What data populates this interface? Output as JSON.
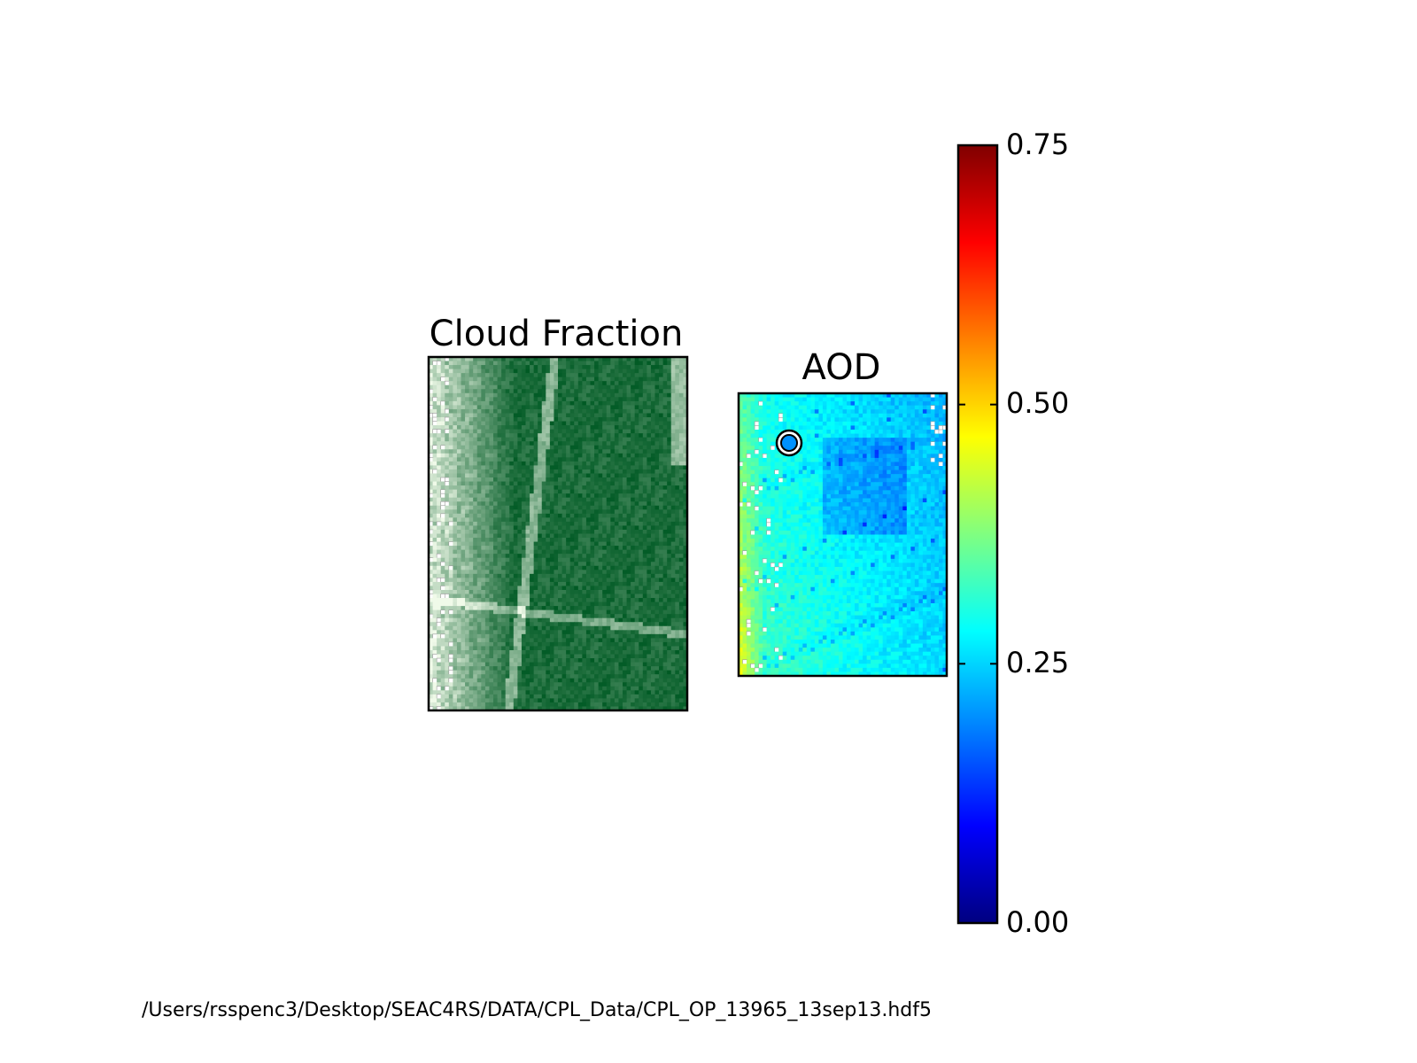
{
  "chart_data": [
    {
      "type": "heatmap",
      "title": "Cloud Fraction",
      "colormap": "Greens",
      "colors": {
        "low": "#f0fae9",
        "high": "#005a24",
        "missing": "#ffffff",
        "missing_edge": "#9a9a9a"
      },
      "axes_visible": false
    },
    {
      "type": "heatmap",
      "title": "AOD",
      "colormap": "jet",
      "colors": {
        "missing": "#ffffff",
        "missing_edge": "#9a9a9a"
      },
      "axes_visible": false,
      "marker": {
        "shape": "circle",
        "value": 0.2,
        "edge": "#000000"
      },
      "colorbar": {
        "range": [
          0.0,
          0.75
        ],
        "ticks": [
          0.0,
          0.25,
          0.5,
          0.75
        ],
        "tick_labels": [
          "0.00",
          "0.25",
          "0.50",
          "0.75"
        ]
      }
    }
  ],
  "footer": {
    "file_path": "/Users/rsspenc3/Desktop/SEAC4RS/DATA/CPL_Data/CPL_OP_13965_13sep13.hdf5"
  }
}
